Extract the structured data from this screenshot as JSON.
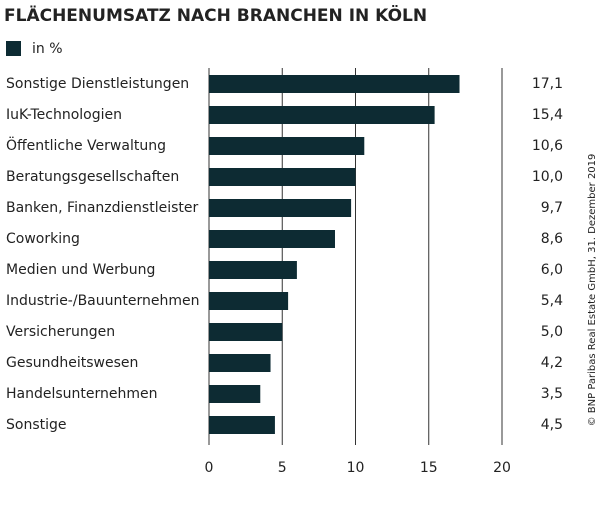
{
  "chart_data": {
    "type": "barh",
    "title": "FLÄCHENUMSATZ NACH BRANCHEN IN KÖLN",
    "legend_label": "in %",
    "categories": [
      "Sonstige Dienstleistungen",
      "IuK-Technologien",
      "Öffentliche Verwaltung",
      "Beratungsgesellschaften",
      "Banken, Finanzdienstleister",
      "Coworking",
      "Medien und Werbung",
      "Industrie-/Bauunternehmen",
      "Versicherungen",
      "Gesundheitswesen",
      "Handelsunternehmen",
      "Sonstige"
    ],
    "values": [
      17.1,
      15.4,
      10.6,
      10.0,
      9.7,
      8.6,
      6.0,
      5.4,
      5.0,
      4.2,
      3.5,
      4.5
    ],
    "value_labels": [
      "17,1",
      "15,4",
      "10,6",
      "10,0",
      "9,7",
      "8,6",
      "6,0",
      "5,4",
      "5,0",
      "4,2",
      "3,5",
      "4,5"
    ],
    "color": "#0d2b33",
    "xlim": [
      0,
      20
    ],
    "xticks": [
      0,
      5,
      10,
      15,
      20
    ],
    "grid": true,
    "source": "© BNP Paribas Real Estate GmbH, 31. Dezember 2019"
  }
}
